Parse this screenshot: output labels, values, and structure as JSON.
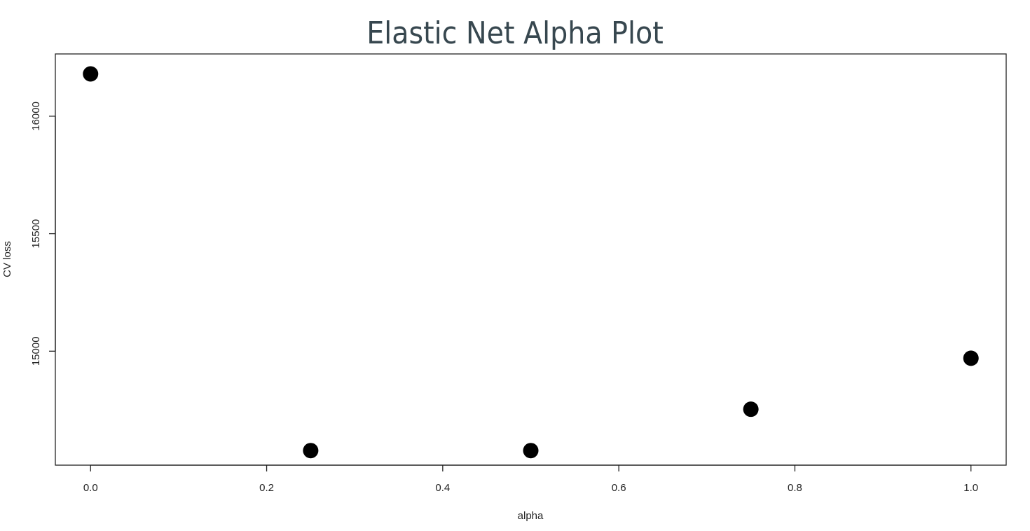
{
  "chart_data": {
    "type": "scatter",
    "title": "Elastic Net Alpha Plot",
    "xlabel": "alpha",
    "ylabel": "CV loss",
    "x": [
      0.0,
      0.25,
      0.5,
      0.75,
      1.0
    ],
    "y": [
      16180,
      14577,
      14577,
      14753,
      14970
    ],
    "xticks": [
      0.0,
      0.2,
      0.4,
      0.6,
      0.8,
      1.0
    ],
    "xtick_labels": [
      "0.0",
      "0.2",
      "0.4",
      "0.6",
      "0.8",
      "1.0"
    ],
    "yticks": [
      15000,
      15500,
      16000
    ],
    "ytick_labels": [
      "15000",
      "15500",
      "16000"
    ],
    "xlim": [
      -0.04,
      1.04
    ],
    "ylim": [
      14515,
      16265
    ],
    "grid": false,
    "legend": "none",
    "point_color": "#000000",
    "title_color": "#37474f"
  }
}
